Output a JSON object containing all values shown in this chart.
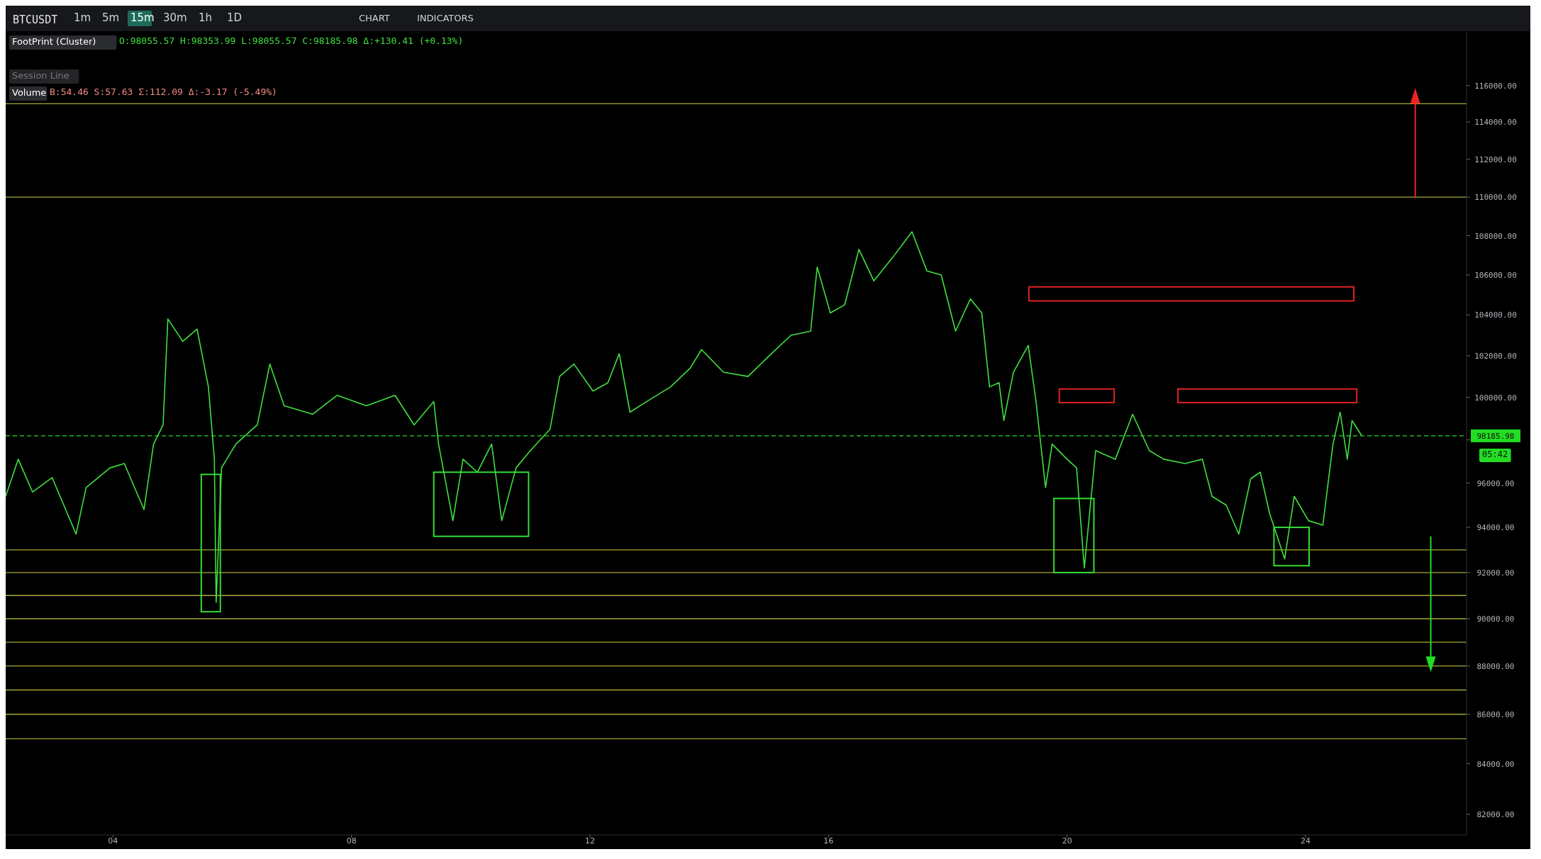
{
  "chart_data": {
    "type": "line",
    "log": "y",
    "annotations": [
      "BTCUSDT",
      "1m",
      "5m",
      "15m",
      "30m",
      "1h",
      "1D",
      "CHART",
      "INDICATORS",
      "FootPrint (Cluster)",
      "O:98055.57 H:98353.99 L:98055.57 C:98185.98 Δ:+130.41 (+0.13%)",
      "Session Line",
      "Volume",
      "B:54.46 S:57.63 Σ:112.09 Δ:-3.17 (-5.49%)",
      "05:42"
    ],
    "xlim": [
      2.2,
      26.7
    ],
    "xticks": [
      {
        "value": 4,
        "label": "04"
      },
      {
        "value": 8,
        "label": "08"
      },
      {
        "value": 12,
        "label": "12"
      },
      {
        "value": 16,
        "label": "16"
      },
      {
        "value": 20,
        "label": "20"
      },
      {
        "value": 24,
        "label": "24"
      }
    ],
    "ylim": [
      81200,
      119000
    ],
    "yticks": [
      {
        "value": 82000,
        "label": "82000.00"
      },
      {
        "value": 84000,
        "label": "84000.00"
      },
      {
        "value": 86000,
        "label": "86000.00"
      },
      {
        "value": 88000,
        "label": "88000.00"
      },
      {
        "value": 90000,
        "label": "90000.00"
      },
      {
        "value": 92000,
        "label": "92000.00"
      },
      {
        "value": 94000,
        "label": "94000.00"
      },
      {
        "value": 96000,
        "label": "96000.00"
      },
      {
        "value": 98000,
        "label": null
      },
      {
        "value": 100000,
        "label": "100000.00"
      },
      {
        "value": 102000,
        "label": "102000.00"
      },
      {
        "value": 104000,
        "label": "104000.00"
      },
      {
        "value": 106000,
        "label": "106000.00"
      },
      {
        "value": 108000,
        "label": "108000.00"
      },
      {
        "value": 110000,
        "label": "110000.00"
      },
      {
        "value": 112000,
        "label": "112000.00"
      },
      {
        "value": 114000,
        "label": "114000.00"
      },
      {
        "value": 116000,
        "label": "116000.00"
      }
    ],
    "grid": false,
    "marker": "none",
    "line_style": "solid",
    "series": [
      {
        "color": "#3fe03f",
        "x": [
          2.2,
          2.41,
          2.65,
          2.98,
          3.38,
          3.55,
          3.95,
          4.19,
          4.52,
          4.68,
          4.84,
          4.92,
          5.17,
          5.41,
          5.6,
          5.7,
          5.73,
          5.82,
          6.06,
          6.42,
          6.63,
          6.87,
          7.35,
          7.76,
          8.25,
          8.73,
          9.05,
          9.38,
          9.46,
          9.7,
          9.87,
          10.11,
          10.35,
          10.52,
          10.76,
          11.0,
          11.33,
          11.49,
          11.73,
          12.05,
          12.3,
          12.49,
          12.67,
          12.95,
          13.35,
          13.68,
          13.87,
          14.24,
          14.65,
          14.97,
          15.37,
          15.7,
          15.81,
          16.03,
          16.27,
          16.51,
          16.76,
          17.08,
          17.4,
          17.65,
          17.89,
          18.13,
          18.38,
          18.57,
          18.7,
          18.86,
          18.94,
          19.1,
          19.35,
          19.48,
          19.64,
          19.75,
          20.0,
          20.16,
          20.29,
          20.48,
          20.81,
          21.1,
          21.38,
          21.62,
          21.98,
          22.27,
          22.43,
          22.67,
          22.88,
          23.08,
          23.24,
          23.4,
          23.65,
          23.81,
          24.05,
          24.29,
          24.46,
          24.58,
          24.7,
          24.78,
          24.94
        ],
        "values": [
          95400,
          97100,
          95600,
          96250,
          93700,
          95800,
          96700,
          96900,
          94800,
          97800,
          98700,
          103800,
          102700,
          103300,
          100500,
          97100,
          90700,
          96700,
          97800,
          98700,
          101600,
          99600,
          99200,
          100100,
          99600,
          100100,
          98700,
          99800,
          97800,
          94300,
          97100,
          96500,
          97800,
          94300,
          96700,
          97500,
          98500,
          101000,
          101600,
          100300,
          100700,
          102100,
          99300,
          99800,
          100500,
          101400,
          102300,
          101200,
          101000,
          101900,
          103000,
          103200,
          106400,
          104100,
          104500,
          107300,
          105700,
          106900,
          108200,
          106200,
          106000,
          103200,
          104800,
          104100,
          100500,
          100700,
          98900,
          101200,
          102500,
          99800,
          95800,
          97800,
          97100,
          96700,
          92200,
          97500,
          97100,
          99200,
          97500,
          97100,
          96900,
          97100,
          95400,
          95000,
          93700,
          96200,
          96500,
          94600,
          92600,
          95400,
          94300,
          94100,
          97800,
          99300,
          97100,
          98900,
          98200
        ]
      }
    ],
    "ref_lines": [
      {
        "axis": "y",
        "value": 98185.98,
        "label": "98185.98",
        "color": "#22dd22",
        "line_style": "dashed"
      },
      {
        "axis": "y",
        "value": 115000,
        "color": "#a8a832"
      },
      {
        "axis": "y",
        "value": 110000,
        "color": "#a8a832"
      },
      {
        "axis": "y",
        "value": 93000,
        "color": "#a8a832"
      },
      {
        "axis": "y",
        "value": 92000,
        "color": "#a8a832"
      },
      {
        "axis": "y",
        "value": 91000,
        "color": "#a8a832"
      },
      {
        "axis": "y",
        "value": 90000,
        "color": "#a8a832"
      },
      {
        "axis": "y",
        "value": 89000,
        "color": "#a8a832"
      },
      {
        "axis": "y",
        "value": 88000,
        "color": "#a8a832"
      },
      {
        "axis": "y",
        "value": 87000,
        "color": "#a8a832"
      },
      {
        "axis": "y",
        "value": 86000,
        "color": "#a8a832"
      },
      {
        "axis": "y",
        "value": 85000,
        "color": "#a8a832"
      }
    ]
  }
}
